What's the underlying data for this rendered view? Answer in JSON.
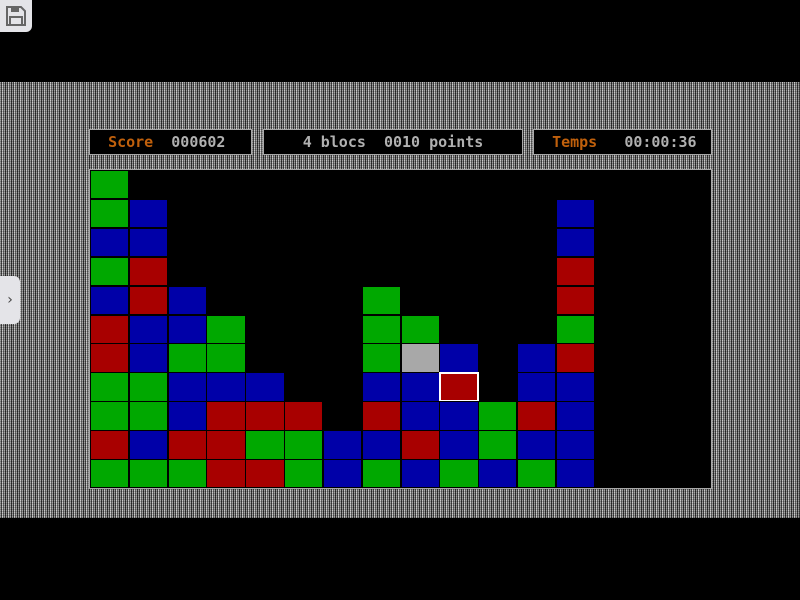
{
  "header": {
    "score_label": "Score",
    "score_value": "000602",
    "selection_text": "4 blocs  0010 points",
    "time_label": "Temps",
    "time_value": "00:00:36"
  },
  "board": {
    "columns": 16,
    "rows": 11,
    "colors": {
      "G": "#00a800",
      "B": "#0000a8",
      "R": "#a80000",
      "W": "#a8a8a8"
    },
    "selected_cell": {
      "row": 7,
      "col": 9
    },
    "grid": [
      "G...............",
      "GB..........B...",
      "BB..........B...",
      "GR..........R...",
      "BRB....G....R...",
      "RBBG...GG...G...",
      "RBGG...GWB.BR...",
      "GGBBB..BBR.BB...",
      "GGBRRR.RBBGRB...",
      "RBRRGGBBRBGBB...",
      "GGGRRGBGBGBGB..."
    ]
  },
  "icons": {
    "save": "floppy-disk-icon",
    "side_tab": "chevron-right-icon"
  }
}
